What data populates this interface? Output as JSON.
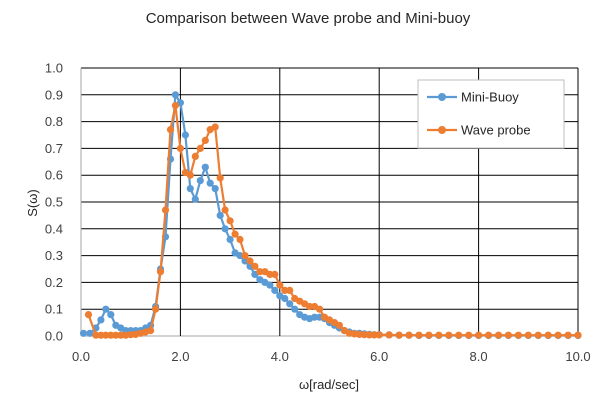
{
  "chart_data": {
    "type": "line",
    "title": "Comparison between Wave probe and Mini-buoy",
    "xlabel": "ω[rad/sec]",
    "ylabel": "S(ω)",
    "xlim": [
      0,
      10
    ],
    "ylim": [
      0,
      1
    ],
    "xticks": [
      "0.0",
      "2.0",
      "4.0",
      "6.0",
      "8.0",
      "10.0"
    ],
    "yticks": [
      "0.0",
      "0.1",
      "0.2",
      "0.3",
      "0.4",
      "0.5",
      "0.6",
      "0.7",
      "0.8",
      "0.9",
      "1.0"
    ],
    "grid": true,
    "legend_position": "top-right",
    "series": [
      {
        "name": "Mini-Buoy",
        "color": "#5B9BD5",
        "x": [
          0.05,
          0.18,
          0.3,
          0.4,
          0.5,
          0.6,
          0.7,
          0.8,
          0.9,
          1.0,
          1.1,
          1.2,
          1.3,
          1.4,
          1.5,
          1.6,
          1.7,
          1.8,
          1.9,
          2.0,
          2.1,
          2.2,
          2.3,
          2.4,
          2.5,
          2.6,
          2.7,
          2.8,
          2.9,
          3.0,
          3.1,
          3.2,
          3.3,
          3.4,
          3.5,
          3.6,
          3.7,
          3.8,
          3.9,
          4.0,
          4.1,
          4.2,
          4.3,
          4.4,
          4.5,
          4.6,
          4.7,
          4.8,
          4.9,
          5.0,
          5.1,
          5.2,
          5.3,
          5.4,
          5.5,
          5.6,
          5.7,
          5.8,
          5.9,
          6.0,
          6.2,
          6.4,
          6.6,
          6.8,
          7.0,
          7.2,
          7.4,
          7.6,
          7.8,
          8.0,
          8.2,
          8.4,
          8.6,
          8.8,
          9.0,
          9.2,
          9.4,
          9.6,
          9.8,
          10.0
        ],
        "y": [
          0.01,
          0.01,
          0.03,
          0.06,
          0.1,
          0.08,
          0.04,
          0.03,
          0.02,
          0.02,
          0.02,
          0.02,
          0.03,
          0.04,
          0.11,
          0.25,
          0.37,
          0.66,
          0.9,
          0.87,
          0.75,
          0.55,
          0.51,
          0.58,
          0.63,
          0.57,
          0.55,
          0.45,
          0.4,
          0.36,
          0.31,
          0.3,
          0.28,
          0.26,
          0.23,
          0.21,
          0.2,
          0.19,
          0.17,
          0.15,
          0.14,
          0.12,
          0.1,
          0.08,
          0.07,
          0.065,
          0.07,
          0.07,
          0.065,
          0.05,
          0.04,
          0.03,
          0.02,
          0.015,
          0.01,
          0.01,
          0.008,
          0.006,
          0.005,
          0.005,
          0.004,
          0.003,
          0.003,
          0.002,
          0.002,
          0.002,
          0.002,
          0.002,
          0.002,
          0.002,
          0.002,
          0.002,
          0.002,
          0.002,
          0.002,
          0.002,
          0.002,
          0.002,
          0.002,
          0.002
        ]
      },
      {
        "name": "Wave probe",
        "color": "#ED7D31",
        "x": [
          0.15,
          0.3,
          0.4,
          0.5,
          0.6,
          0.7,
          0.8,
          0.9,
          1.0,
          1.1,
          1.2,
          1.3,
          1.4,
          1.5,
          1.6,
          1.7,
          1.8,
          1.9,
          2.0,
          2.1,
          2.2,
          2.3,
          2.4,
          2.5,
          2.6,
          2.7,
          2.8,
          2.9,
          3.0,
          3.1,
          3.2,
          3.3,
          3.4,
          3.5,
          3.6,
          3.7,
          3.8,
          3.9,
          4.0,
          4.1,
          4.2,
          4.3,
          4.4,
          4.5,
          4.6,
          4.7,
          4.8,
          4.9,
          5.0,
          5.1,
          5.2,
          5.3,
          5.4,
          5.5,
          5.6,
          5.7,
          5.8,
          5.9,
          6.0,
          6.2,
          6.4,
          6.6,
          6.8,
          7.0,
          7.2,
          7.4,
          7.6,
          7.8,
          8.0,
          8.2,
          8.4,
          8.6,
          8.8,
          9.0,
          9.2,
          9.4,
          9.6,
          9.8,
          10.0
        ],
        "y": [
          0.08,
          0.003,
          0.003,
          0.003,
          0.003,
          0.003,
          0.003,
          0.003,
          0.005,
          0.006,
          0.01,
          0.015,
          0.02,
          0.1,
          0.24,
          0.47,
          0.77,
          0.86,
          0.7,
          0.61,
          0.6,
          0.67,
          0.7,
          0.73,
          0.77,
          0.78,
          0.59,
          0.47,
          0.43,
          0.38,
          0.36,
          0.3,
          0.28,
          0.26,
          0.24,
          0.24,
          0.23,
          0.23,
          0.19,
          0.17,
          0.17,
          0.14,
          0.13,
          0.12,
          0.11,
          0.11,
          0.1,
          0.07,
          0.06,
          0.05,
          0.04,
          0.02,
          0.01,
          0.008,
          0.006,
          0.005,
          0.004,
          0.004,
          0.004,
          0.004,
          0.003,
          0.003,
          0.003,
          0.003,
          0.003,
          0.003,
          0.003,
          0.003,
          0.003,
          0.003,
          0.003,
          0.003,
          0.003,
          0.003,
          0.003,
          0.003,
          0.003,
          0.003,
          0.003
        ]
      }
    ]
  }
}
